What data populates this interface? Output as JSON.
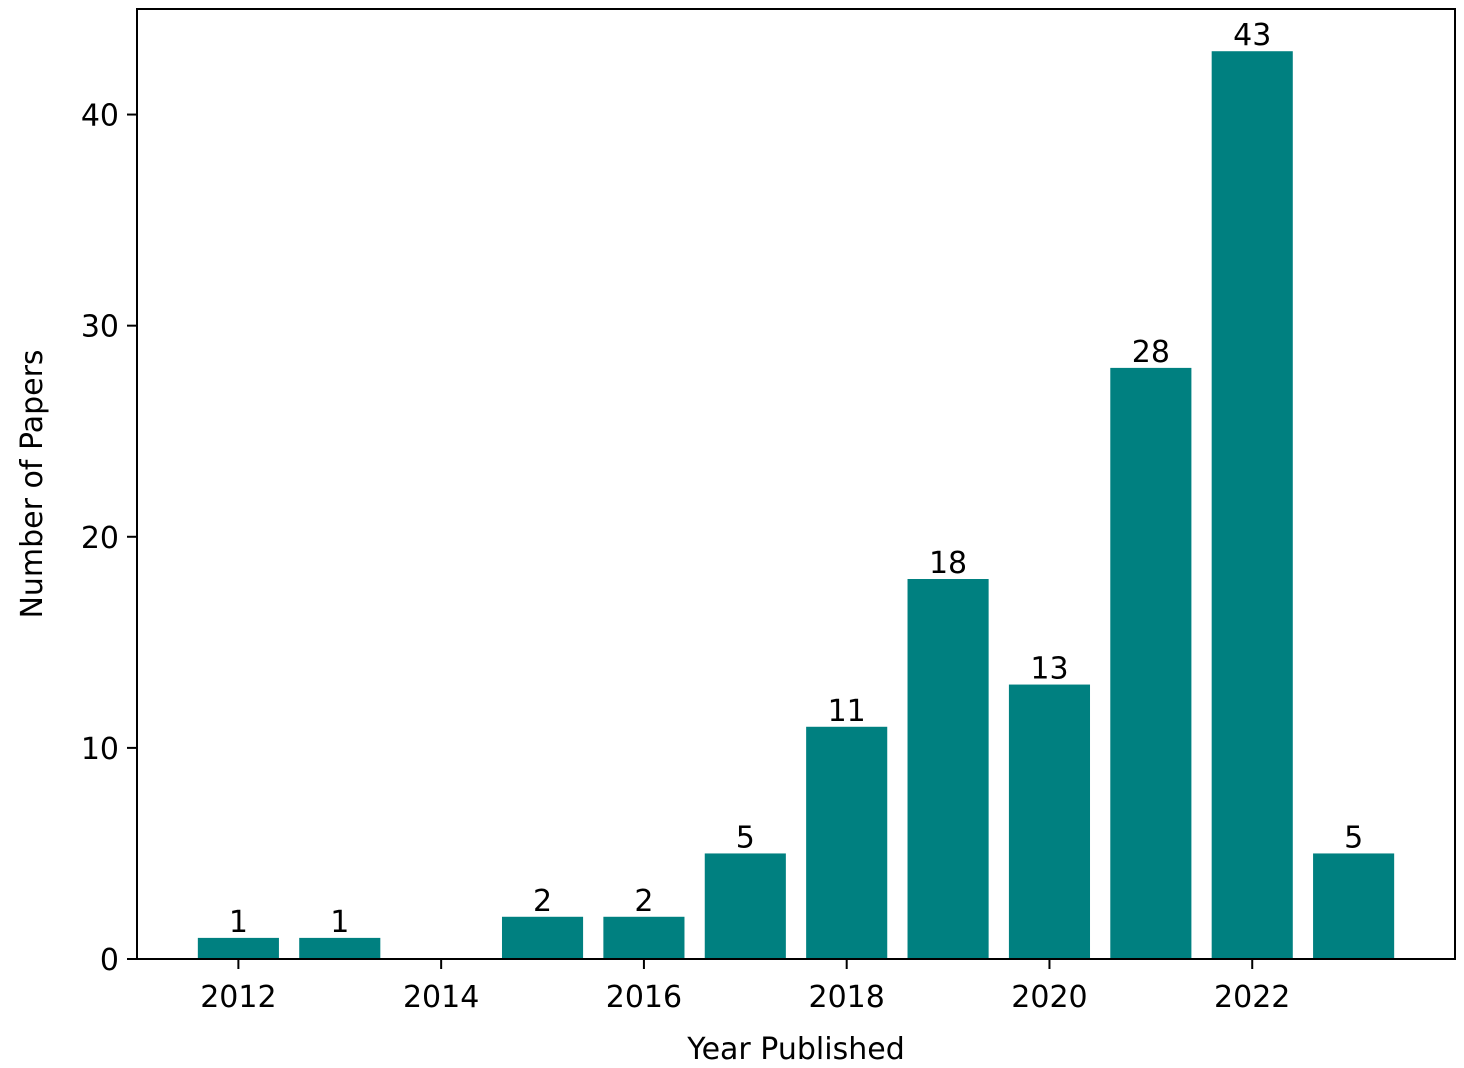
{
  "chart_data": {
    "type": "bar",
    "x": [
      2012,
      2013,
      2015,
      2016,
      2017,
      2018,
      2019,
      2020,
      2021,
      2022,
      2023
    ],
    "values": [
      1,
      1,
      2,
      2,
      5,
      11,
      18,
      13,
      28,
      43,
      5
    ],
    "data_labels": [
      "1",
      "1",
      "2",
      "2",
      "5",
      "11",
      "18",
      "13",
      "28",
      "43",
      "5"
    ],
    "xlabel": "Year Published",
    "ylabel": "Number of Papers",
    "xticks": [
      "2012",
      "2014",
      "2016",
      "2018",
      "2020",
      "2022"
    ],
    "yticks": [
      "0",
      "10",
      "20",
      "30",
      "40"
    ],
    "xlim": [
      2011,
      2024
    ],
    "ylim": [
      0,
      45
    ],
    "bar_color": "#008080",
    "grid": false,
    "legend": "none"
  }
}
